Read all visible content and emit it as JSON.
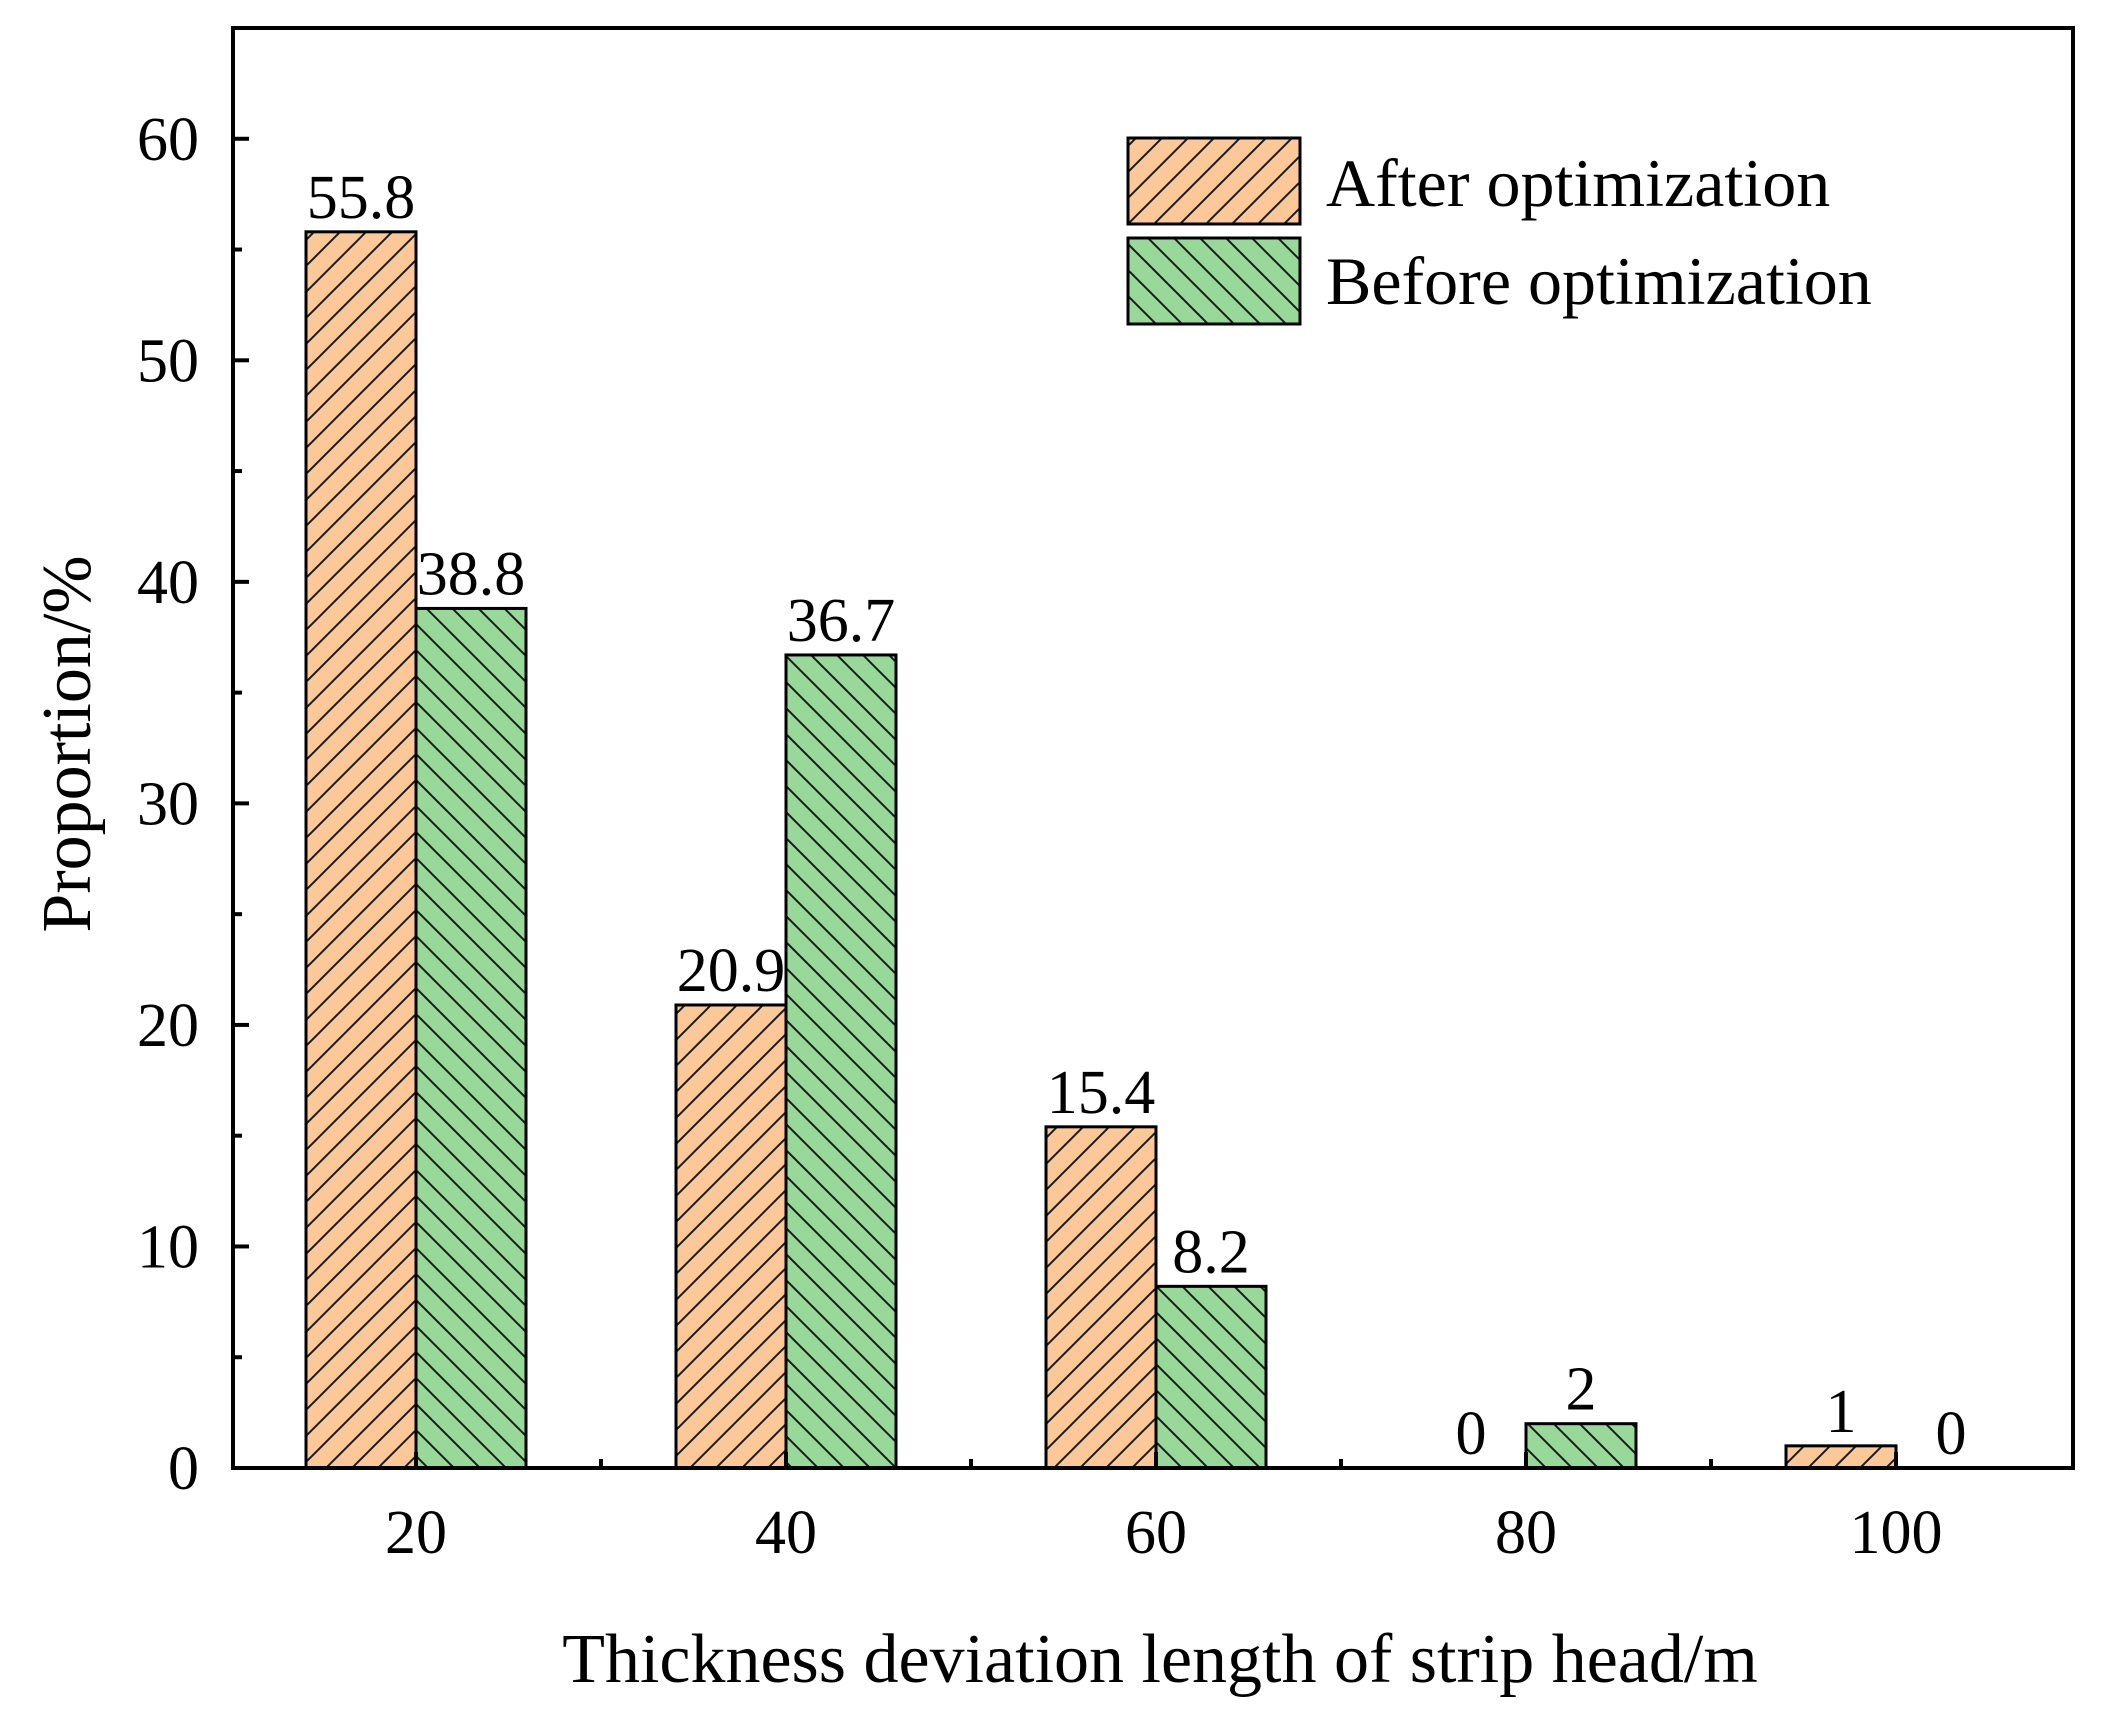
{
  "chart_data": {
    "type": "bar",
    "title": "",
    "xlabel": "Thickness deviation length of strip head/m",
    "ylabel": "Proportion/%",
    "categories": [
      "20",
      "40",
      "60",
      "80",
      "100"
    ],
    "series": [
      {
        "name": "After optimization",
        "values": [
          55.8,
          20.9,
          15.4,
          0,
          1
        ],
        "labels": [
          "55.8",
          "20.9",
          "15.4",
          "0",
          "1"
        ]
      },
      {
        "name": "Before optimization",
        "values": [
          38.8,
          36.7,
          8.2,
          2,
          0
        ],
        "labels": [
          "38.8",
          "36.7",
          "8.2",
          "2",
          "0"
        ]
      }
    ],
    "ylim": [
      0,
      65
    ],
    "yticks": [
      "0",
      "10",
      "20",
      "30",
      "40",
      "50",
      "60"
    ],
    "grid": false,
    "legend": "top-right",
    "colors": {
      "after": "#FDC898",
      "before": "#98D99A",
      "hatch": "#1a1a1a",
      "axis": "#000000"
    }
  }
}
